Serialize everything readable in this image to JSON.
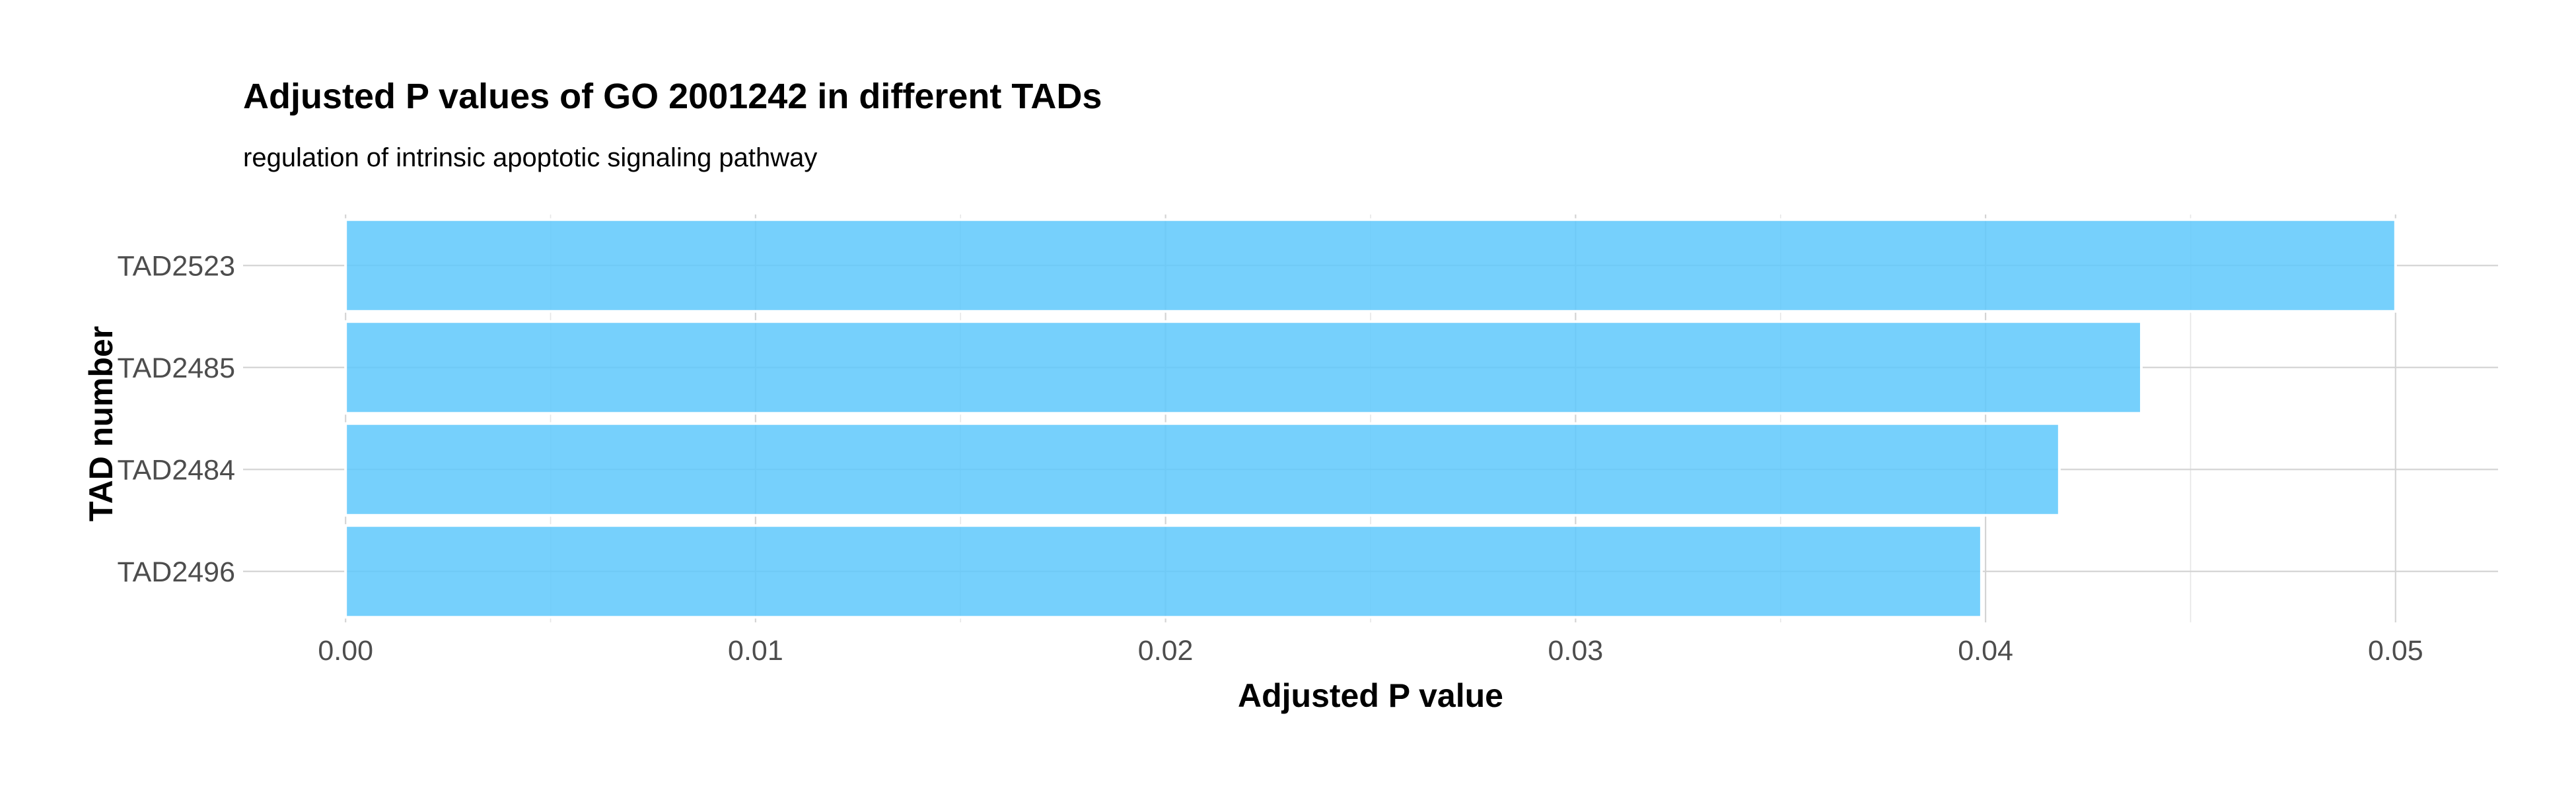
{
  "chart_data": {
    "type": "bar",
    "orientation": "horizontal",
    "title": "Adjusted P values of GO 2001242 in different TADs",
    "subtitle": "regulation of intrinsic apoptotic signaling pathway",
    "xlabel": "Adjusted P value",
    "ylabel": "TAD number",
    "categories": [
      "TAD2523",
      "TAD2485",
      "TAD2484",
      "TAD2496"
    ],
    "values": [
      0.05,
      0.0438,
      0.0418,
      0.0399
    ],
    "xlim": [
      -0.0025,
      0.0525
    ],
    "xticks": [
      0.0,
      0.01,
      0.02,
      0.03,
      0.04,
      0.05
    ],
    "xtick_labels": [
      "0.00",
      "0.01",
      "0.02",
      "0.03",
      "0.04",
      "0.05"
    ],
    "grid": true,
    "legend": "none",
    "bar_color": "#5ec8fb"
  }
}
